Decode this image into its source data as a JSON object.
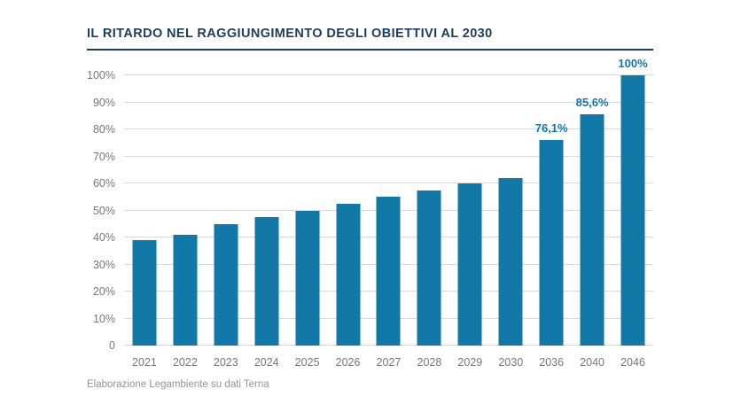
{
  "page": {
    "title": "IL RITARDO NEL RAGGIUNGIMENTO DEGLI OBIETTIVI AL 2030",
    "source": "Elaborazione Legambiente su dati Terna"
  },
  "colors": {
    "bar": "#1278a7",
    "title": "#1d3d5c",
    "grid": "#d9d9d9",
    "axis_text": "#77787b",
    "source_text": "#939598",
    "background": "#ffffff"
  },
  "chart_data": {
    "type": "bar",
    "title": "IL RITARDO NEL RAGGIUNGIMENTO DEGLI OBIETTIVI AL 2030",
    "categories": [
      "2021",
      "2022",
      "2023",
      "2024",
      "2025",
      "2026",
      "2027",
      "2028",
      "2029",
      "2030",
      "2036",
      "2040",
      "2046"
    ],
    "values": [
      39,
      41,
      45,
      47.5,
      50,
      52.5,
      55,
      57.5,
      60,
      62,
      76.1,
      85.6,
      100
    ],
    "point_labels": [
      "",
      "",
      "",
      "",
      "",
      "",
      "",
      "",
      "",
      "",
      "76,1%",
      "85,6%",
      "100%"
    ],
    "yticks": [
      "0",
      "10%",
      "20%",
      "30%",
      "40%",
      "50%",
      "60%",
      "70%",
      "80%",
      "90%",
      "100%"
    ],
    "ylim": [
      0,
      100
    ],
    "grid": "horizontal",
    "legend": "none",
    "xlabel": "",
    "ylabel": "",
    "source": "Elaborazione Legambiente su dati Terna"
  }
}
